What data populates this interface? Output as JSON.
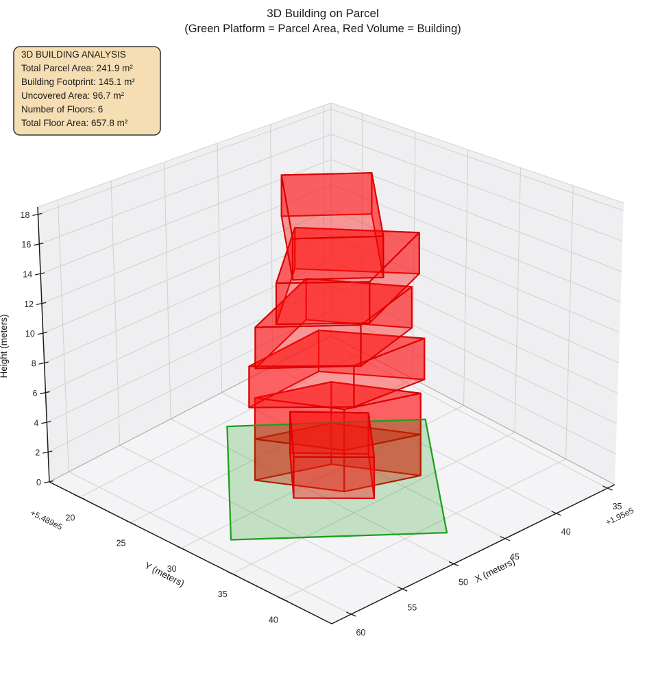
{
  "figure": {
    "title": "3D Building on Parcel",
    "subtitle": "(Green Platform = Parcel Area, Red Volume = Building)"
  },
  "analysis_box": {
    "heading": "3D BUILDING ANALYSIS",
    "lines": [
      "Total Parcel Area: 241.9 m²",
      "Building Footprint: 145.1 m²",
      "Uncovered Area: 96.7 m²",
      "Number of Floors: 6",
      "Total Floor Area: 657.8 m²"
    ],
    "background": "#f5deb3",
    "border": "#3a3a3a"
  },
  "chart_data": {
    "type": "3d-building-extrusion",
    "title": "3D Building on Parcel",
    "subtitle": "(Green Platform = Parcel Area, Red Volume = Building)",
    "axes": {
      "x": {
        "label": "X (meters)",
        "ticks": [
          35,
          40,
          45,
          50,
          55,
          60
        ],
        "offset_text": "+1.95e5",
        "range": [
          34.3,
          61.9
        ]
      },
      "y": {
        "label": "Y (meters)",
        "ticks": [
          20,
          25,
          30,
          35,
          40
        ],
        "offset_text": "+5.489e5",
        "range": [
          17.0,
          44.8
        ]
      },
      "z": {
        "label": "Height (meters)",
        "ticks": [
          0,
          2,
          4,
          6,
          8,
          10,
          12,
          14,
          16,
          18
        ],
        "range": [
          0,
          18.5
        ]
      }
    },
    "grid": true,
    "parcel": {
      "area_m2": 241.9,
      "fill": "#008f00",
      "fill_alpha": 0.2,
      "edge": "#1da01d",
      "corners": [
        [
          47.4,
          21.8
        ],
        [
          37.2,
          29.1
        ],
        [
          47.0,
          38.6
        ],
        [
          58.05,
          30.6
        ]
      ]
    },
    "building": {
      "footprint_m2": 145.1,
      "uncovered_m2": 96.7,
      "num_floors": 6,
      "floor_height_m": 3,
      "total_floor_area_m2": 657.8,
      "fill": "#ff1010",
      "fill_alpha": 0.4,
      "edge": "#dc0000",
      "floors": [
        {
          "name": "floor-1",
          "z": [
            0,
            3
          ],
          "corners": [
            [
              51.2,
              27.0
            ],
            [
              46.0,
              28.8
            ],
            [
              42.8,
              33.2
            ],
            [
              48.0,
              31.4
            ]
          ]
        },
        {
          "name": "floor-2",
          "z": [
            3,
            6
          ],
          "corners": [
            [
              51.2,
              27.0
            ],
            [
              46.0,
              28.8
            ],
            [
              42.8,
              33.2
            ],
            [
              48.0,
              31.4
            ]
          ]
        },
        {
          "name": "floor-3",
          "z": [
            6,
            9
          ],
          "corners": [
            [
              52.4,
              27.5
            ],
            [
              45.6,
              27.5
            ],
            [
              41.3,
              32.3
            ],
            [
              47.3,
              31.6
            ]
          ]
        },
        {
          "name": "floor-4",
          "z": [
            9,
            12
          ],
          "corners": [
            [
              52.3,
              27.9
            ],
            [
              45.2,
              26.2
            ],
            [
              40.9,
              31.0
            ],
            [
              47.0,
              31.9
            ]
          ]
        },
        {
          "name": "floor-5",
          "z": [
            12,
            15
          ],
          "corners": [
            [
              51.0,
              28.5
            ],
            [
              44.8,
              25.0
            ],
            [
              39.3,
              30.3
            ],
            [
              46.4,
              32.1
            ]
          ]
        },
        {
          "name": "floor-6",
          "z": [
            15,
            18
          ],
          "corners": [
            [
              49.9,
              28.9
            ],
            [
              44.35,
              23.6
            ],
            [
              39.8,
              27.0
            ],
            [
              45.3,
              32.3
            ]
          ]
        }
      ],
      "annex": {
        "name": "annex",
        "z": [
          0,
          3
        ],
        "corners": [
          [
            46.9,
            26.3
          ],
          [
            43.25,
            29.5
          ],
          [
            47.2,
            33.1
          ],
          [
            51.05,
            29.9
          ]
        ]
      }
    },
    "style": {
      "pane_side": "#efeff1",
      "pane_floor": "#f4f4f6",
      "grid_color": "#cfcfcf",
      "axis_dark": "#1c1c1c",
      "axis_mid": "#b0b0b0",
      "axis_light": "#d2d2d2"
    }
  }
}
